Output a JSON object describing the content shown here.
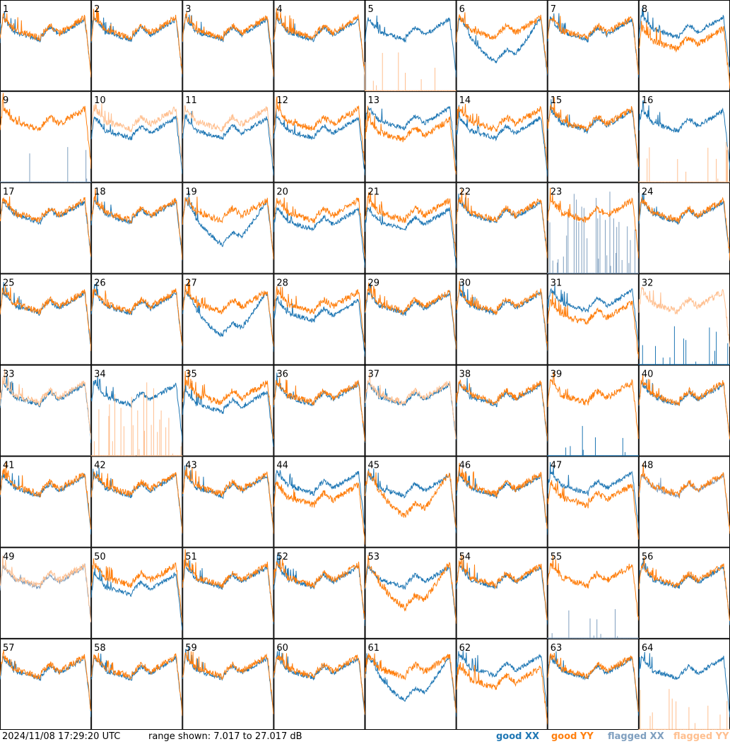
{
  "chart_data": {
    "type": "line",
    "panels": [
      "1",
      "2",
      "3",
      "4",
      "5",
      "6",
      "7",
      "8",
      "9",
      "10",
      "11",
      "12",
      "13",
      "14",
      "15",
      "16",
      "17",
      "18",
      "19",
      "20",
      "21",
      "22",
      "23",
      "24",
      "25",
      "26",
      "27",
      "28",
      "29",
      "30",
      "31",
      "32",
      "33",
      "34",
      "35",
      "36",
      "37",
      "38",
      "39",
      "40",
      "41",
      "42",
      "43",
      "44",
      "45",
      "46",
      "47",
      "48",
      "49",
      "50",
      "51",
      "52",
      "53",
      "54",
      "55",
      "56",
      "57",
      "58",
      "59",
      "60",
      "61",
      "62",
      "63",
      "64"
    ],
    "grid": [
      8,
      8
    ],
    "ylim": [
      7.017,
      27.017
    ],
    "yunit": "dB",
    "legend": {
      "placement": "bottom-right",
      "entries": [
        {
          "name": "good XX",
          "color": "#1f77b4"
        },
        {
          "name": "good YY",
          "color": "#ff7f0e"
        },
        {
          "name": "flagged XX",
          "color": "#7f9fbf"
        },
        {
          "name": "flagged YY",
          "color": "#ffbf8f"
        }
      ]
    },
    "series_status": {
      "flagged_xx": [
        9,
        23,
        48,
        49,
        55
      ],
      "flagged_yy": [
        10,
        11,
        32,
        33,
        37,
        49
      ],
      "spiky_yy": [
        5,
        16,
        34,
        64
      ],
      "spiky_xx": [
        32,
        39,
        55
      ],
      "xx_dip": [
        6,
        19,
        27,
        61
      ],
      "yy_dip": [
        45,
        53
      ],
      "yy_low": [
        8,
        13,
        44,
        47,
        31,
        62
      ],
      "xx_low": [
        10,
        11,
        14,
        21,
        12,
        20,
        28,
        35,
        50
      ]
    }
  },
  "footer": {
    "timestamp": "2024/11/08 17:29:20 UTC",
    "range": "range shown: 7.017 to 27.017 dB",
    "legend_good_xx": "good XX",
    "legend_good_yy": "good YY",
    "legend_flagged_xx": "flagged XX",
    "legend_flagged_yy": "flagged YY"
  }
}
